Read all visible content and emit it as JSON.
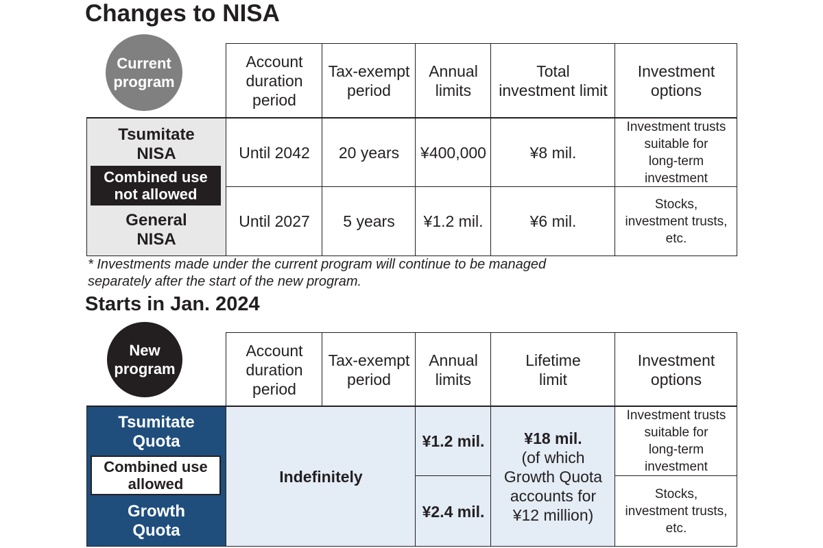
{
  "title": "Changes to NISA",
  "current": {
    "badge": "Current\nprogram",
    "headers": [
      "Account\nduration\nperiod",
      "Tax-exempt\nperiod",
      "Annual\nlimits",
      "Total\ninvestment limit",
      "Investment\noptions"
    ],
    "rows": [
      {
        "name": "Tsumitate\nNISA",
        "duration": "Until 2042",
        "tax_exempt": "20 years",
        "annual": "¥400,000",
        "total": "¥8 mil.",
        "options": "Investment trusts\nsuitable for\nlong-term\ninvestment"
      },
      {
        "name": "General\nNISA",
        "duration": "Until 2027",
        "tax_exempt": "5 years",
        "annual": "¥1.2 mil.",
        "total": "¥6 mil.",
        "options": "Stocks,\ninvestment trusts,\netc."
      }
    ],
    "combined_tag": "Combined use\nnot allowed",
    "footnote": "* Investments made under the current program will continue to be managed\nseparately after the start of the new program."
  },
  "new_program": {
    "heading": "Starts in Jan. 2024",
    "badge": "New\nprogram",
    "headers": [
      "Account\nduration\nperiod",
      "Tax-exempt\nperiod",
      "Annual\nlimits",
      "Lifetime\nlimit",
      "Investment\noptions"
    ],
    "rows": [
      {
        "name": "Tsumitate\nQuota",
        "annual": "¥1.2 mil.",
        "options": "Investment trusts\nsuitable for\nlong-term\ninvestment"
      },
      {
        "name": "Growth\nQuota",
        "annual": "¥2.4 mil.",
        "options": "Stocks,\ninvestment trusts,\netc."
      }
    ],
    "duration_and_tax_exempt": "Indefinitely",
    "lifetime_amount": "¥18 mil.",
    "lifetime_note": "(of which\nGrowth Quota\naccounts for\n¥12 million)",
    "combined_tag": "Combined use\nallowed"
  },
  "colors": {
    "text": "#231f20",
    "current_badge": "#808080",
    "new_badge": "#231f20",
    "current_name_bg": "#e8e8e8",
    "new_name_bg": "#1f4e7d",
    "new_shared_bg": "#e4ecf6"
  }
}
